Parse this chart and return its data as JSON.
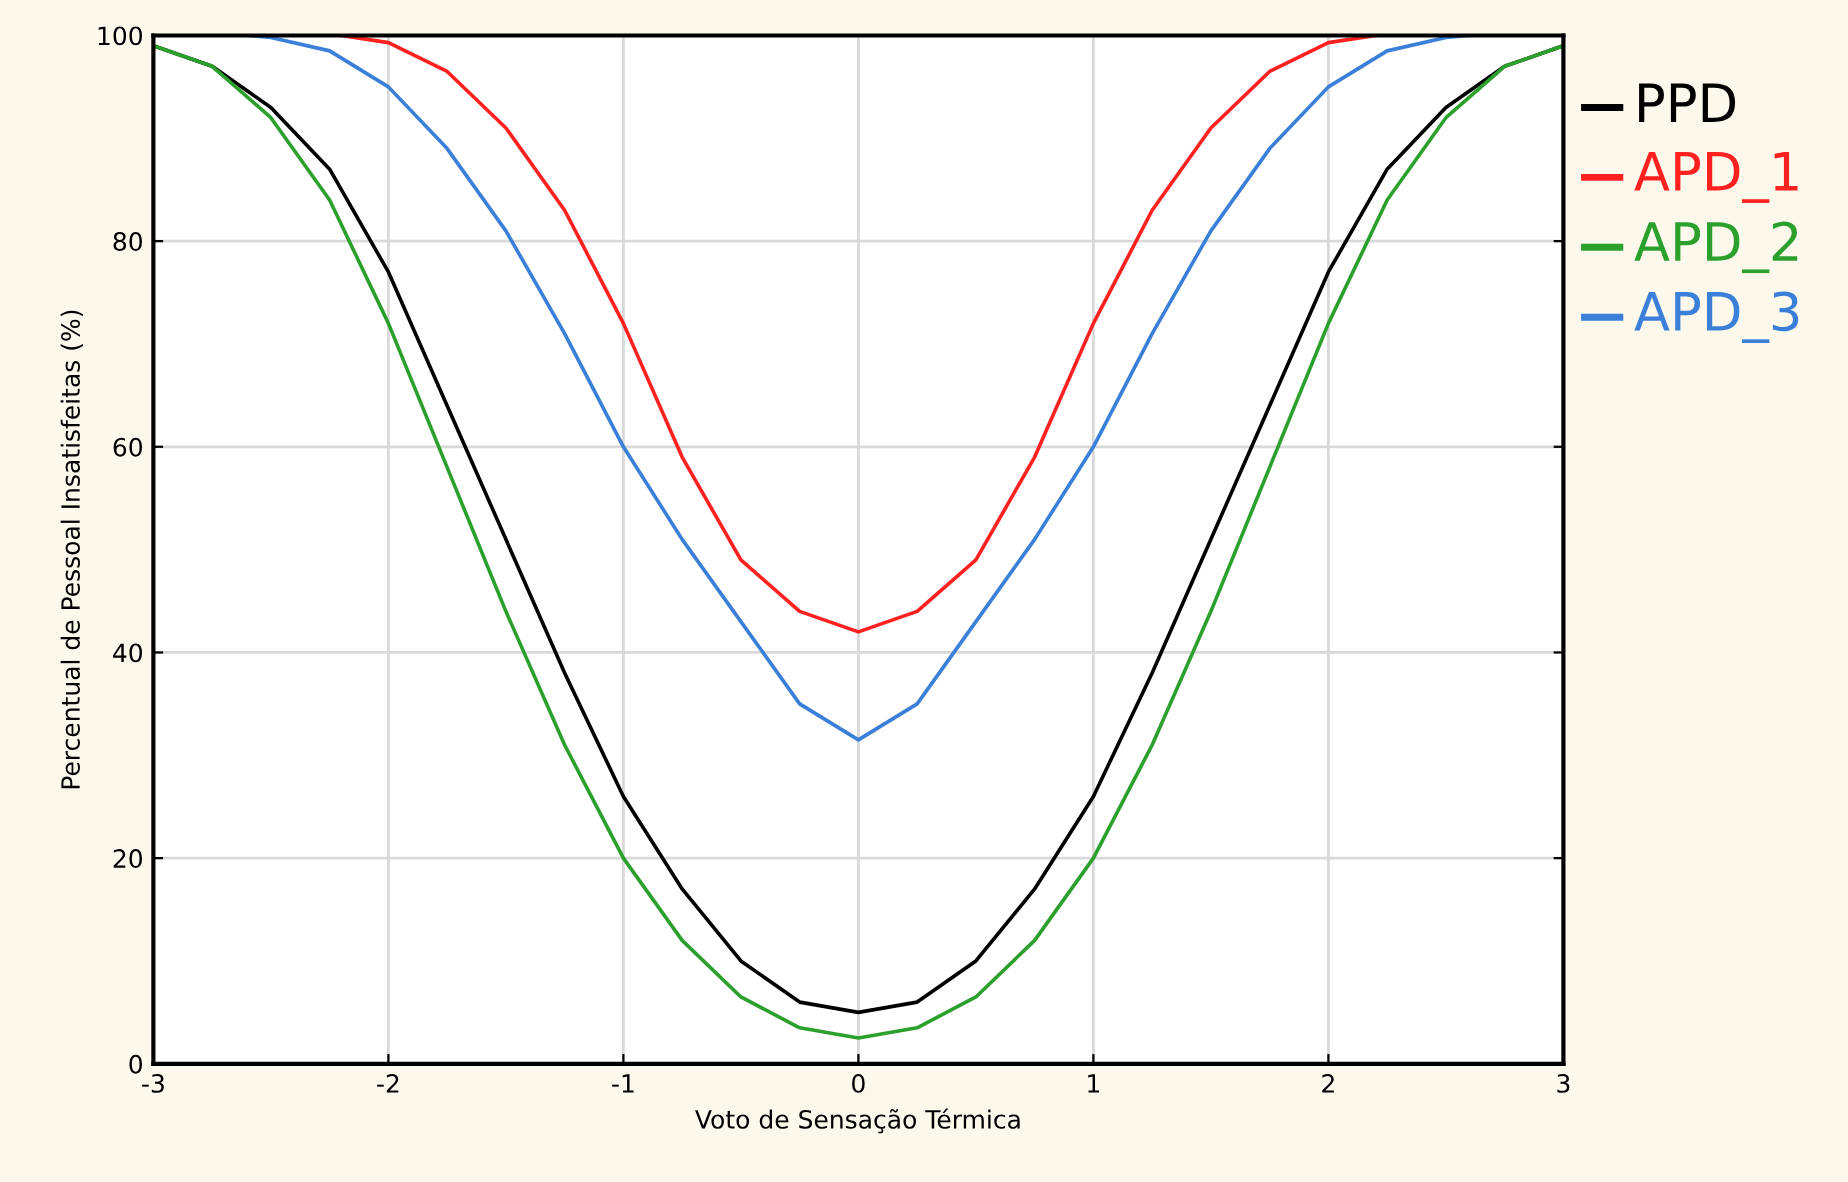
{
  "chart_data": {
    "type": "line",
    "xlabel": "Voto de Sensação Térmica",
    "ylabel": "Percentual de Pessoal Insatisfeitas (%)",
    "xlim": [
      -3,
      3
    ],
    "xticks": [
      -3,
      -2,
      -1,
      0,
      1,
      2,
      3
    ],
    "ylim": [
      0,
      100
    ],
    "yticks": [
      0,
      20,
      40,
      60,
      80,
      100
    ],
    "grid": true,
    "legend": "right",
    "marker": "none",
    "line_style": "solid",
    "series": [
      {
        "name": "PPD",
        "color": "#000000",
        "x": [
          -3,
          -2.75,
          -2.5,
          -2.25,
          -2,
          -1.75,
          -1.5,
          -1.25,
          -1,
          -0.75,
          -0.5,
          -0.25,
          0,
          0.25,
          0.5,
          0.75,
          1,
          1.25,
          1.5,
          1.75,
          2,
          2.25,
          2.5,
          2.75,
          3
        ],
        "values": [
          99,
          97,
          93,
          87,
          77,
          64,
          51,
          38,
          26,
          17,
          10,
          6,
          5,
          6,
          10,
          17,
          26,
          38,
          51,
          64,
          77,
          87,
          93,
          97,
          99
        ]
      },
      {
        "name": "APD_1",
        "color": "#ff2020",
        "x": [
          -2.2,
          -2,
          -1.75,
          -1.5,
          -1.25,
          -1,
          -0.75,
          -0.5,
          -0.25,
          0,
          0.25,
          0.5,
          0.75,
          1,
          1.25,
          1.5,
          1.75,
          2,
          2.2
        ],
        "values": [
          100,
          99.3,
          96.5,
          91,
          83,
          72,
          59,
          49,
          44,
          42,
          44,
          49,
          59,
          72,
          83,
          91,
          96.5,
          99.3,
          100
        ]
      },
      {
        "name": "APD_2",
        "color": "#2ca02c",
        "x": [
          -3,
          -2.75,
          -2.5,
          -2.25,
          -2,
          -1.75,
          -1.5,
          -1.25,
          -1,
          -0.75,
          -0.5,
          -0.25,
          0,
          0.25,
          0.5,
          0.75,
          1,
          1.25,
          1.5,
          1.75,
          2,
          2.25,
          2.5,
          2.75,
          3
        ],
        "values": [
          99,
          97,
          92,
          84,
          72,
          58,
          44,
          31,
          20,
          12,
          6.5,
          3.5,
          2.5,
          3.5,
          6.5,
          12,
          20,
          31,
          44,
          58,
          72,
          84,
          92,
          97,
          99
        ]
      },
      {
        "name": "APD_3",
        "color": "#3a7fd8",
        "x": [
          -2.6,
          -2.5,
          -2.25,
          -2,
          -1.75,
          -1.5,
          -1.25,
          -1,
          -0.75,
          -0.5,
          -0.25,
          0,
          0.25,
          0.5,
          0.75,
          1,
          1.25,
          1.5,
          1.75,
          2,
          2.25,
          2.5,
          2.6
        ],
        "values": [
          100,
          99.8,
          98.5,
          95,
          89,
          81,
          71,
          60,
          51,
          43,
          35,
          31.5,
          35,
          43,
          51,
          60,
          71,
          81,
          89,
          95,
          98.5,
          99.8,
          100
        ]
      }
    ]
  }
}
